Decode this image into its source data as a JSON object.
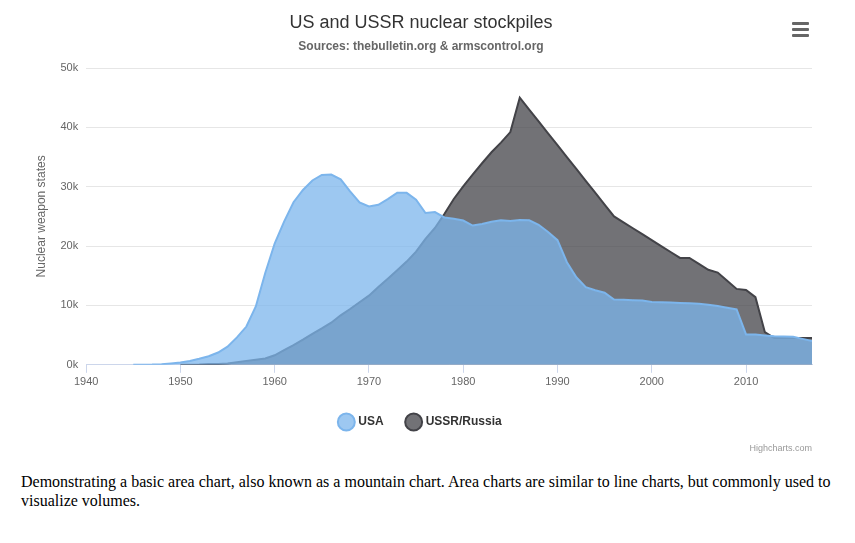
{
  "chart_data": {
    "type": "area",
    "title": "US and USSR nuclear stockpiles",
    "subtitle": "Sources: thebulletin.org & armscontrol.org",
    "y_label": "Nuclear weapon states",
    "credits": "Highcharts.com",
    "caption": "Demonstrating a basic area chart, also known as a mountain chart. Area charts are similar to line charts, but commonly used to visualize volumes.",
    "x": [
      1940,
      1941,
      1942,
      1943,
      1944,
      1945,
      1946,
      1947,
      1948,
      1949,
      1950,
      1951,
      1952,
      1953,
      1954,
      1955,
      1956,
      1957,
      1958,
      1959,
      1960,
      1961,
      1962,
      1963,
      1964,
      1965,
      1966,
      1967,
      1968,
      1969,
      1970,
      1971,
      1972,
      1973,
      1974,
      1975,
      1976,
      1977,
      1978,
      1979,
      1980,
      1981,
      1982,
      1983,
      1984,
      1985,
      1986,
      1987,
      1988,
      1989,
      1990,
      1991,
      1992,
      1993,
      1994,
      1995,
      1996,
      1997,
      1998,
      1999,
      2000,
      2001,
      2002,
      2003,
      2004,
      2005,
      2006,
      2007,
      2008,
      2009,
      2010,
      2011,
      2012,
      2013,
      2014,
      2015,
      2016,
      2017
    ],
    "series": [
      {
        "name": "USA",
        "color": "#7cb5ec",
        "values": [
          null,
          null,
          null,
          null,
          null,
          6,
          11,
          32,
          110,
          235,
          369,
          640,
          1005,
          1436,
          2063,
          3057,
          4618,
          6444,
          9822,
          15468,
          20434,
          24126,
          27387,
          29459,
          31056,
          31982,
          32040,
          31233,
          29224,
          27342,
          26662,
          26956,
          27912,
          28999,
          28965,
          27826,
          25579,
          25722,
          24826,
          24605,
          24304,
          23464,
          23708,
          24099,
          24357,
          24237,
          24401,
          24344,
          23586,
          22380,
          21004,
          17287,
          14747,
          13076,
          12555,
          12144,
          11009,
          10950,
          10871,
          10824,
          10577,
          10527,
          10475,
          10421,
          10358,
          10295,
          10104,
          9914,
          9620,
          9326,
          5113,
          5113,
          4954,
          4804,
          4761,
          4717,
          4368,
          4018
        ]
      },
      {
        "name": "USSR/Russia",
        "color": "#434348",
        "values": [
          null,
          null,
          null,
          null,
          null,
          null,
          null,
          null,
          null,
          null,
          5,
          25,
          50,
          120,
          150,
          200,
          426,
          660,
          869,
          1060,
          1605,
          2471,
          3322,
          4238,
          5221,
          6129,
          7089,
          8339,
          9399,
          10538,
          11643,
          13092,
          14478,
          15915,
          17385,
          19055,
          21205,
          23044,
          25393,
          27935,
          30062,
          32049,
          33952,
          35804,
          37431,
          39197,
          45000,
          43000,
          41000,
          39000,
          37000,
          35000,
          33000,
          31000,
          29000,
          27000,
          25000,
          24000,
          23000,
          22000,
          21000,
          20000,
          19000,
          18000,
          18000,
          17000,
          16000,
          15537,
          14162,
          12787,
          12600,
          11400,
          5500,
          4512,
          4502,
          4502,
          4500,
          4500
        ]
      }
    ],
    "xlim": [
      1940,
      2017
    ],
    "xticks": [
      1940,
      1950,
      1960,
      1970,
      1980,
      1990,
      2000,
      2010
    ],
    "ylim": [
      0,
      50000
    ],
    "yticks": [
      {
        "value": 0,
        "label": "0k"
      },
      {
        "value": 10000,
        "label": "10k"
      },
      {
        "value": 20000,
        "label": "20k"
      },
      {
        "value": 30000,
        "label": "30k"
      },
      {
        "value": 40000,
        "label": "40k"
      },
      {
        "value": 50000,
        "label": "50k"
      }
    ],
    "grid": true,
    "legend": "bottom"
  }
}
